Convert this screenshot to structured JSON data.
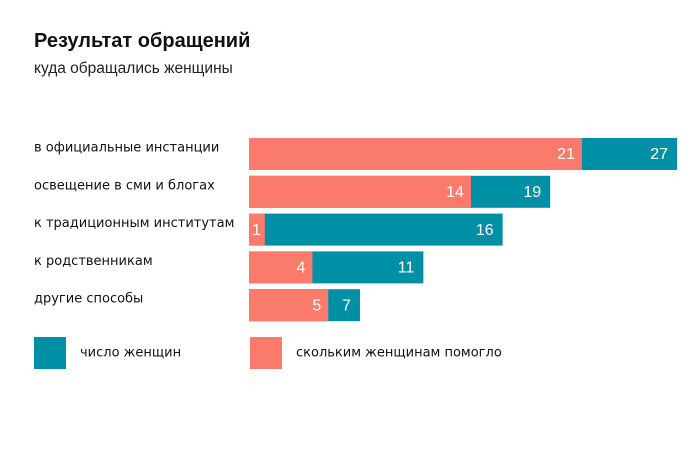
{
  "chart_data": {
    "type": "bar",
    "orientation": "horizontal",
    "stacked": "overlay",
    "title": "Результат обращений",
    "subtitle": "куда обращались женщины",
    "categories": [
      "в официальные инстанции",
      "освещение в сми и блогах",
      "к традиционным институтам",
      "к родственникам",
      "другие способы"
    ],
    "series": [
      {
        "name": "число женщин",
        "color": "#0090a6",
        "values": [
          27,
          19,
          16,
          11,
          7
        ]
      },
      {
        "name": "скольким женщинам помогло",
        "color": "#fa7a6c",
        "values": [
          21,
          14,
          1,
          4,
          5
        ]
      }
    ],
    "xlim": [
      0,
      27
    ],
    "grid": false,
    "legend": "bottom-left"
  }
}
